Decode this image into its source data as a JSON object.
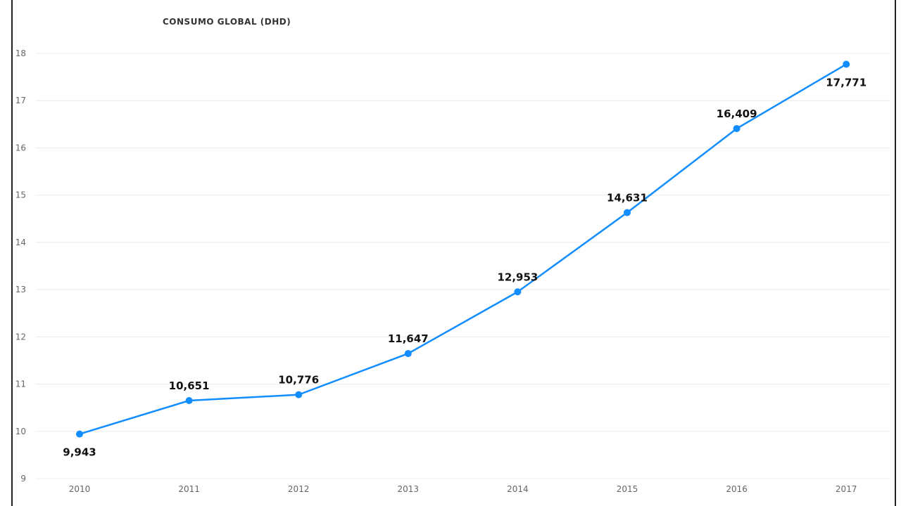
{
  "chart_data": {
    "type": "line",
    "title": "CONSUMO GLOBAL (DHD)",
    "xlabel": "",
    "ylabel": "",
    "x": [
      "2010",
      "2011",
      "2012",
      "2013",
      "2014",
      "2015",
      "2016",
      "2017"
    ],
    "series": [
      {
        "values": [
          9.943,
          10.651,
          10.776,
          11.647,
          12.953,
          14.631,
          16.409,
          17.771
        ],
        "labels": [
          "9,943",
          "10,651",
          "10,776",
          "11,647",
          "12,953",
          "14,631",
          "16,409",
          "17,771"
        ],
        "color": "#118DFF"
      }
    ],
    "ylim": [
      9,
      18
    ],
    "yticks": [
      "9",
      "10",
      "11",
      "12",
      "13",
      "14",
      "15",
      "16",
      "17",
      "18"
    ],
    "grid": true,
    "legend": "none"
  }
}
